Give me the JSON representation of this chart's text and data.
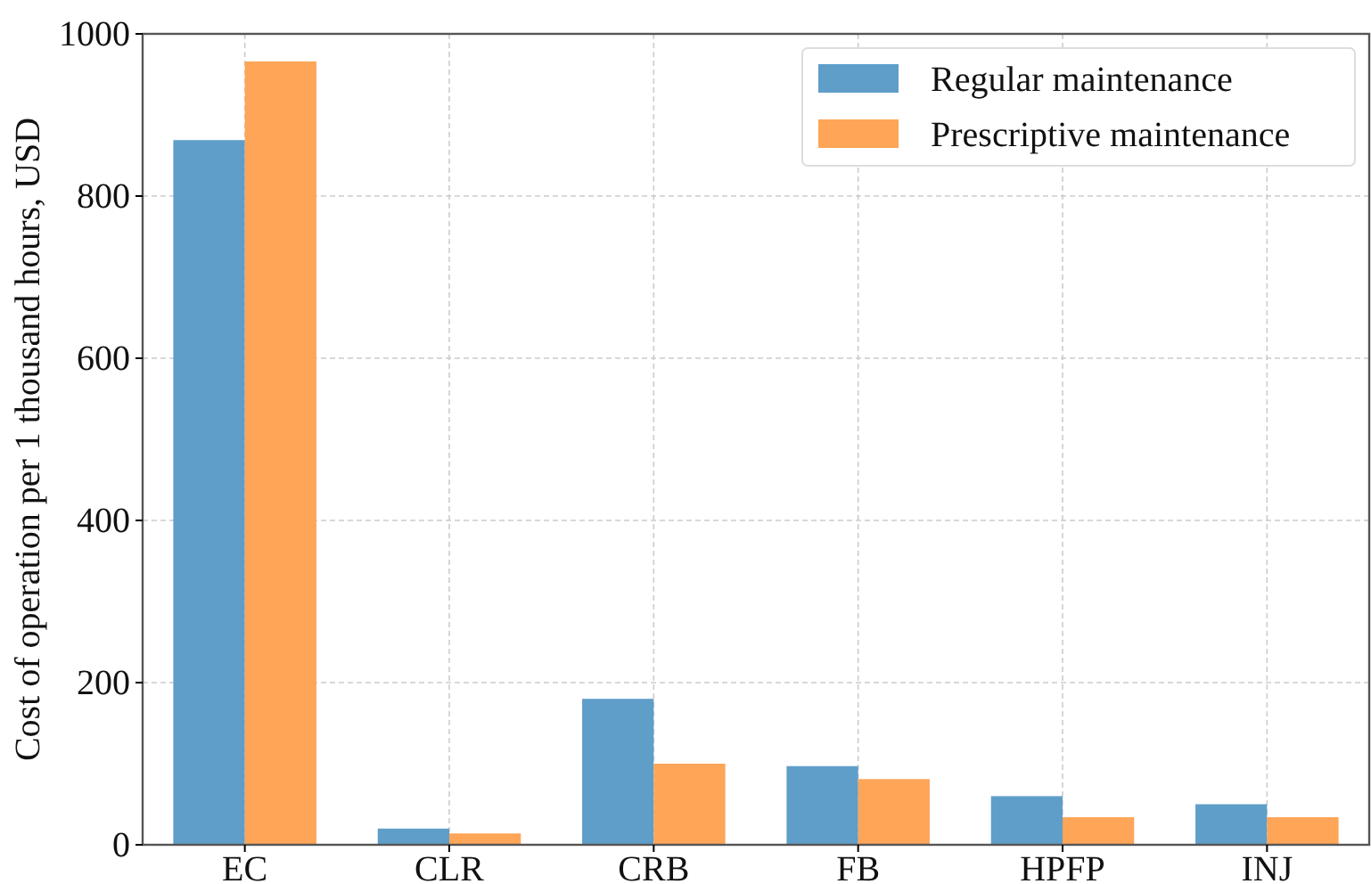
{
  "chart_data": {
    "type": "bar",
    "ylabel": "Cost of operation per 1 thousand hours, USD",
    "categories": [
      "EC",
      "CLR",
      "CRB",
      "FB",
      "HPFP",
      "INJ"
    ],
    "series": [
      {
        "name": "Regular maintenance",
        "color": "#5f9ec9",
        "values": [
          869,
          20,
          180,
          97,
          60,
          50
        ]
      },
      {
        "name": "Prescriptive maintenance",
        "color": "#fea557",
        "values": [
          966,
          14,
          100,
          81,
          34,
          34
        ]
      }
    ],
    "ylim": [
      0,
      1000
    ],
    "yticks": [
      0,
      200,
      400,
      600,
      800,
      1000
    ],
    "grid": true,
    "legend": "top right"
  }
}
